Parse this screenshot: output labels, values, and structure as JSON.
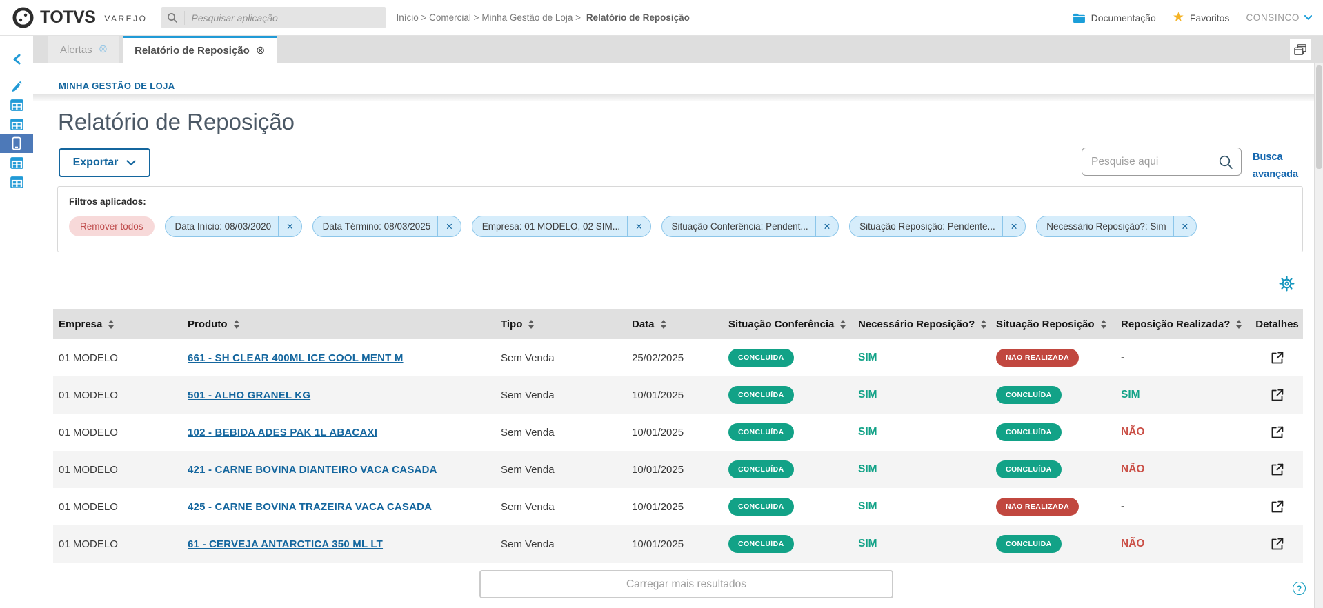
{
  "colors": {
    "brand_blue": "#219ad6",
    "navy_blue": "#14669e",
    "teal": "#12a287",
    "red": "#c1473f",
    "chip_bg": "#d6edfb",
    "chip_border": "#8cc6ea",
    "remove_chip_bg": "#f7d9d9",
    "remove_chip_text": "#bf4b4b",
    "star_yellow": "#f5b324",
    "sidebar_selected_bg": "#4d79b8"
  },
  "header": {
    "brand": {
      "name": "TOTVS",
      "suffix": "VAREJO",
      "logo_icon": "totvs-circle-logo"
    },
    "app_search": {
      "placeholder": "Pesquisar aplicação",
      "icon": "search-icon"
    },
    "breadcrumb": {
      "trail": "Início > Comercial > Minha Gestão de Loja >",
      "current": "Relatório de Reposição"
    },
    "documentation_label": "Documentação",
    "documentation_icon": "folder-icon",
    "favorites_label": "Favoritos",
    "favorites_icon": "star-icon",
    "user_menu": "CONSINCO",
    "user_menu_icon": "chevron-down-icon"
  },
  "sidebar": {
    "collapse_icon": "chevron-left-icon",
    "items": [
      {
        "icon": "pen",
        "selected": false
      },
      {
        "icon": "app-grid",
        "selected": false
      },
      {
        "icon": "app-grid",
        "selected": false
      },
      {
        "icon": "mobile",
        "selected": true
      },
      {
        "icon": "app-grid",
        "selected": false
      },
      {
        "icon": "app-grid",
        "selected": false
      }
    ]
  },
  "tabs": {
    "items": [
      {
        "label": "Alertas",
        "active": false,
        "close_icon": "circle-x-icon"
      },
      {
        "label": "Relatório de Reposição",
        "active": true,
        "close_icon": "circle-x-icon"
      }
    ],
    "close_all_icon": "close-all-tabs-icon",
    "close_glyph": "⊗"
  },
  "page": {
    "section_label": "MINHA GESTÃO DE LOJA",
    "title": "Relatório de Reposição",
    "export_button": "Exportar",
    "search": {
      "placeholder": "Pesquise aqui",
      "icon": "search-icon"
    },
    "advanced_search": {
      "line1": "Busca",
      "line2": "avançada"
    },
    "settings_icon": "gear-icon",
    "filters": {
      "label": "Filtros aplicados:",
      "remove_all": "Remover todos",
      "chip_close_glyph": "✕",
      "chips": [
        "Data Início: 08/03/2020",
        "Data Término: 08/03/2025",
        "Empresa: 01 MODELO, 02 SIM...",
        "Situação Conferência: Pendent...",
        "Situação Reposição: Pendente...",
        "Necessário Reposição?: Sim"
      ]
    },
    "table": {
      "columns": [
        {
          "label": "Empresa",
          "sortable": true
        },
        {
          "label": "Produto",
          "sortable": true
        },
        {
          "label": "Tipo",
          "sortable": true
        },
        {
          "label": "Data",
          "sortable": true
        },
        {
          "label": "Situação Conferência",
          "sortable": true
        },
        {
          "label": "Necessário Reposição?",
          "sortable": true
        },
        {
          "label": "Situação Reposição",
          "sortable": true
        },
        {
          "label": "Reposição Realizada?",
          "sortable": true
        },
        {
          "label": "Detalhes",
          "sortable": false
        }
      ],
      "detail_icon": "external-link-icon",
      "rows": [
        {
          "empresa": "01 MODELO",
          "produto": "661 - SH CLEAR 400ML ICE COOL MENT M",
          "tipo": "Sem Venda",
          "data": "25/02/2025",
          "situacao_conferencia": "CONCLUÍDA",
          "necessario_reposicao": "SIM",
          "situacao_reposicao": "NÃO REALIZADA",
          "reposicao_realizada": "-"
        },
        {
          "empresa": "01 MODELO",
          "produto": "501 - ALHO GRANEL KG",
          "tipo": "Sem Venda",
          "data": "10/01/2025",
          "situacao_conferencia": "CONCLUÍDA",
          "necessario_reposicao": "SIM",
          "situacao_reposicao": "CONCLUÍDA",
          "reposicao_realizada": "SIM"
        },
        {
          "empresa": "01 MODELO",
          "produto": "102 - BEBIDA ADES PAK 1L ABACAXI",
          "tipo": "Sem Venda",
          "data": "10/01/2025",
          "situacao_conferencia": "CONCLUÍDA",
          "necessario_reposicao": "SIM",
          "situacao_reposicao": "CONCLUÍDA",
          "reposicao_realizada": "NÃO"
        },
        {
          "empresa": "01 MODELO",
          "produto": "421 - CARNE BOVINA DIANTEIRO VACA CASADA",
          "tipo": "Sem Venda",
          "data": "10/01/2025",
          "situacao_conferencia": "CONCLUÍDA",
          "necessario_reposicao": "SIM",
          "situacao_reposicao": "CONCLUÍDA",
          "reposicao_realizada": "NÃO"
        },
        {
          "empresa": "01 MODELO",
          "produto": "425 - CARNE BOVINA TRAZEIRA VACA CASADA",
          "tipo": "Sem Venda",
          "data": "10/01/2025",
          "situacao_conferencia": "CONCLUÍDA",
          "necessario_reposicao": "SIM",
          "situacao_reposicao": "NÃO REALIZADA",
          "reposicao_realizada": "-"
        },
        {
          "empresa": "01 MODELO",
          "produto": "61 - CERVEJA ANTARCTICA 350 ML LT",
          "tipo": "Sem Venda",
          "data": "10/01/2025",
          "situacao_conferencia": "CONCLUÍDA",
          "necessario_reposicao": "SIM",
          "situacao_reposicao": "CONCLUÍDA",
          "reposicao_realizada": "NÃO"
        }
      ]
    },
    "load_more": "Carregar mais resultados",
    "help_glyph": "?"
  }
}
